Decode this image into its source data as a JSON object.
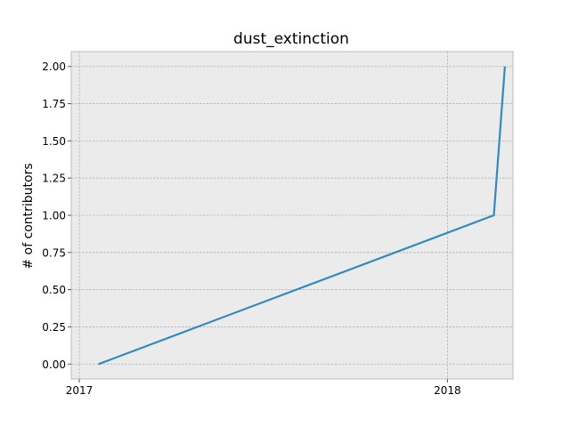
{
  "chart_data": {
    "type": "line",
    "title": "dust_extinction",
    "xlabel": "",
    "ylabel": "# of contributors",
    "xlim": [
      "2016-12-24",
      "2018-03-07"
    ],
    "ylim": [
      -0.1,
      2.1
    ],
    "grid": true,
    "x_ticks": [
      {
        "value": "2017-01-01",
        "label": "2017"
      },
      {
        "value": "2018-01-01",
        "label": "2018"
      }
    ],
    "y_ticks": [
      {
        "value": 0.0,
        "label": "0.00"
      },
      {
        "value": 0.25,
        "label": "0.25"
      },
      {
        "value": 0.5,
        "label": "0.50"
      },
      {
        "value": 0.75,
        "label": "0.75"
      },
      {
        "value": 1.0,
        "label": "1.00"
      },
      {
        "value": 1.25,
        "label": "1.25"
      },
      {
        "value": 1.5,
        "label": "1.50"
      },
      {
        "value": 1.75,
        "label": "1.75"
      },
      {
        "value": 2.0,
        "label": "2.00"
      }
    ],
    "series": [
      {
        "color": "#348abd",
        "points": [
          {
            "x": "2017-01-20",
            "y": 0
          },
          {
            "x": "2018-02-16",
            "y": 1
          },
          {
            "x": "2018-02-27",
            "y": 2
          }
        ]
      }
    ]
  }
}
